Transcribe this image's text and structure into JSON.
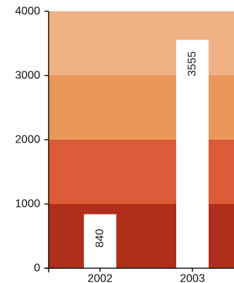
{
  "chart_data": {
    "type": "bar",
    "title": "",
    "xlabel": "",
    "ylabel": "",
    "categories": [
      "2002",
      "2003"
    ],
    "values": [
      840,
      3555
    ],
    "data_labels": [
      "840",
      "3555"
    ],
    "ylim": [
      0,
      4000
    ],
    "yticks": [
      0,
      1000,
      2000,
      3000,
      4000
    ],
    "ytick_labels": [
      "0",
      "1000",
      "2000",
      "3000",
      "4000"
    ],
    "bar_color": "#ffffff",
    "background_bands": [
      {
        "from": 0,
        "to": 1000,
        "color": "#b02e1c"
      },
      {
        "from": 1000,
        "to": 2000,
        "color": "#dc5a35"
      },
      {
        "from": 2000,
        "to": 3000,
        "color": "#e9975a"
      },
      {
        "from": 3000,
        "to": 4000,
        "color": "#f0b184"
      }
    ],
    "grid": false,
    "legend": "none"
  }
}
